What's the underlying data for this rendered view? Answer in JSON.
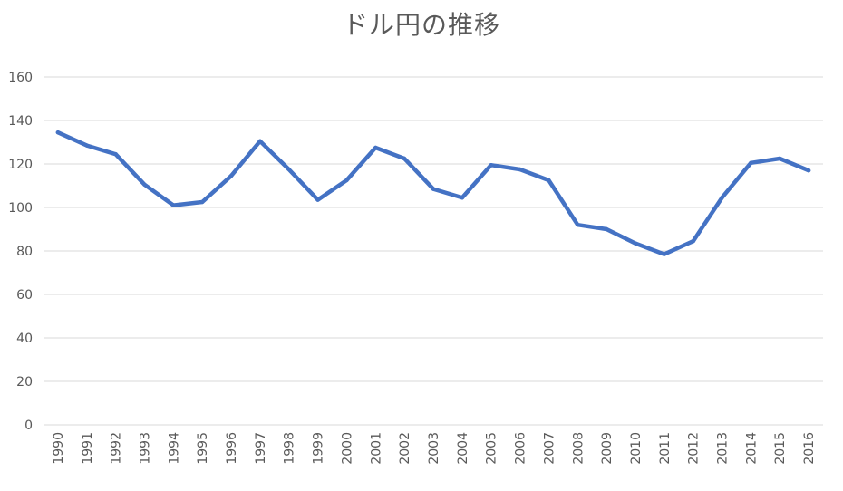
{
  "chart_data": {
    "type": "line",
    "title": "ドル円の推移",
    "xlabel": "",
    "ylabel": "",
    "ylim": [
      0,
      160
    ],
    "yticks": [
      0,
      20,
      40,
      60,
      80,
      100,
      120,
      140,
      160
    ],
    "grid": true,
    "legend": "none",
    "categories": [
      "1990",
      "1991",
      "1992",
      "1993",
      "1994",
      "1995",
      "1996",
      "1997",
      "1998",
      "1999",
      "2000",
      "2001",
      "2002",
      "2003",
      "2004",
      "2005",
      "2006",
      "2007",
      "2008",
      "2009",
      "2010",
      "2011",
      "2012",
      "2013",
      "2014",
      "2015",
      "2016"
    ],
    "series": [
      {
        "color": "#4472C4",
        "values": [
          134.5,
          128.5,
          124.5,
          110.5,
          101,
          102.5,
          114.5,
          130.5,
          117.5,
          103.5,
          112.5,
          127.5,
          122.5,
          108.5,
          104.5,
          119.5,
          117.5,
          112.5,
          92,
          90,
          83.5,
          78.5,
          84.5,
          104.5,
          120.5,
          122.5,
          117
        ]
      }
    ]
  }
}
